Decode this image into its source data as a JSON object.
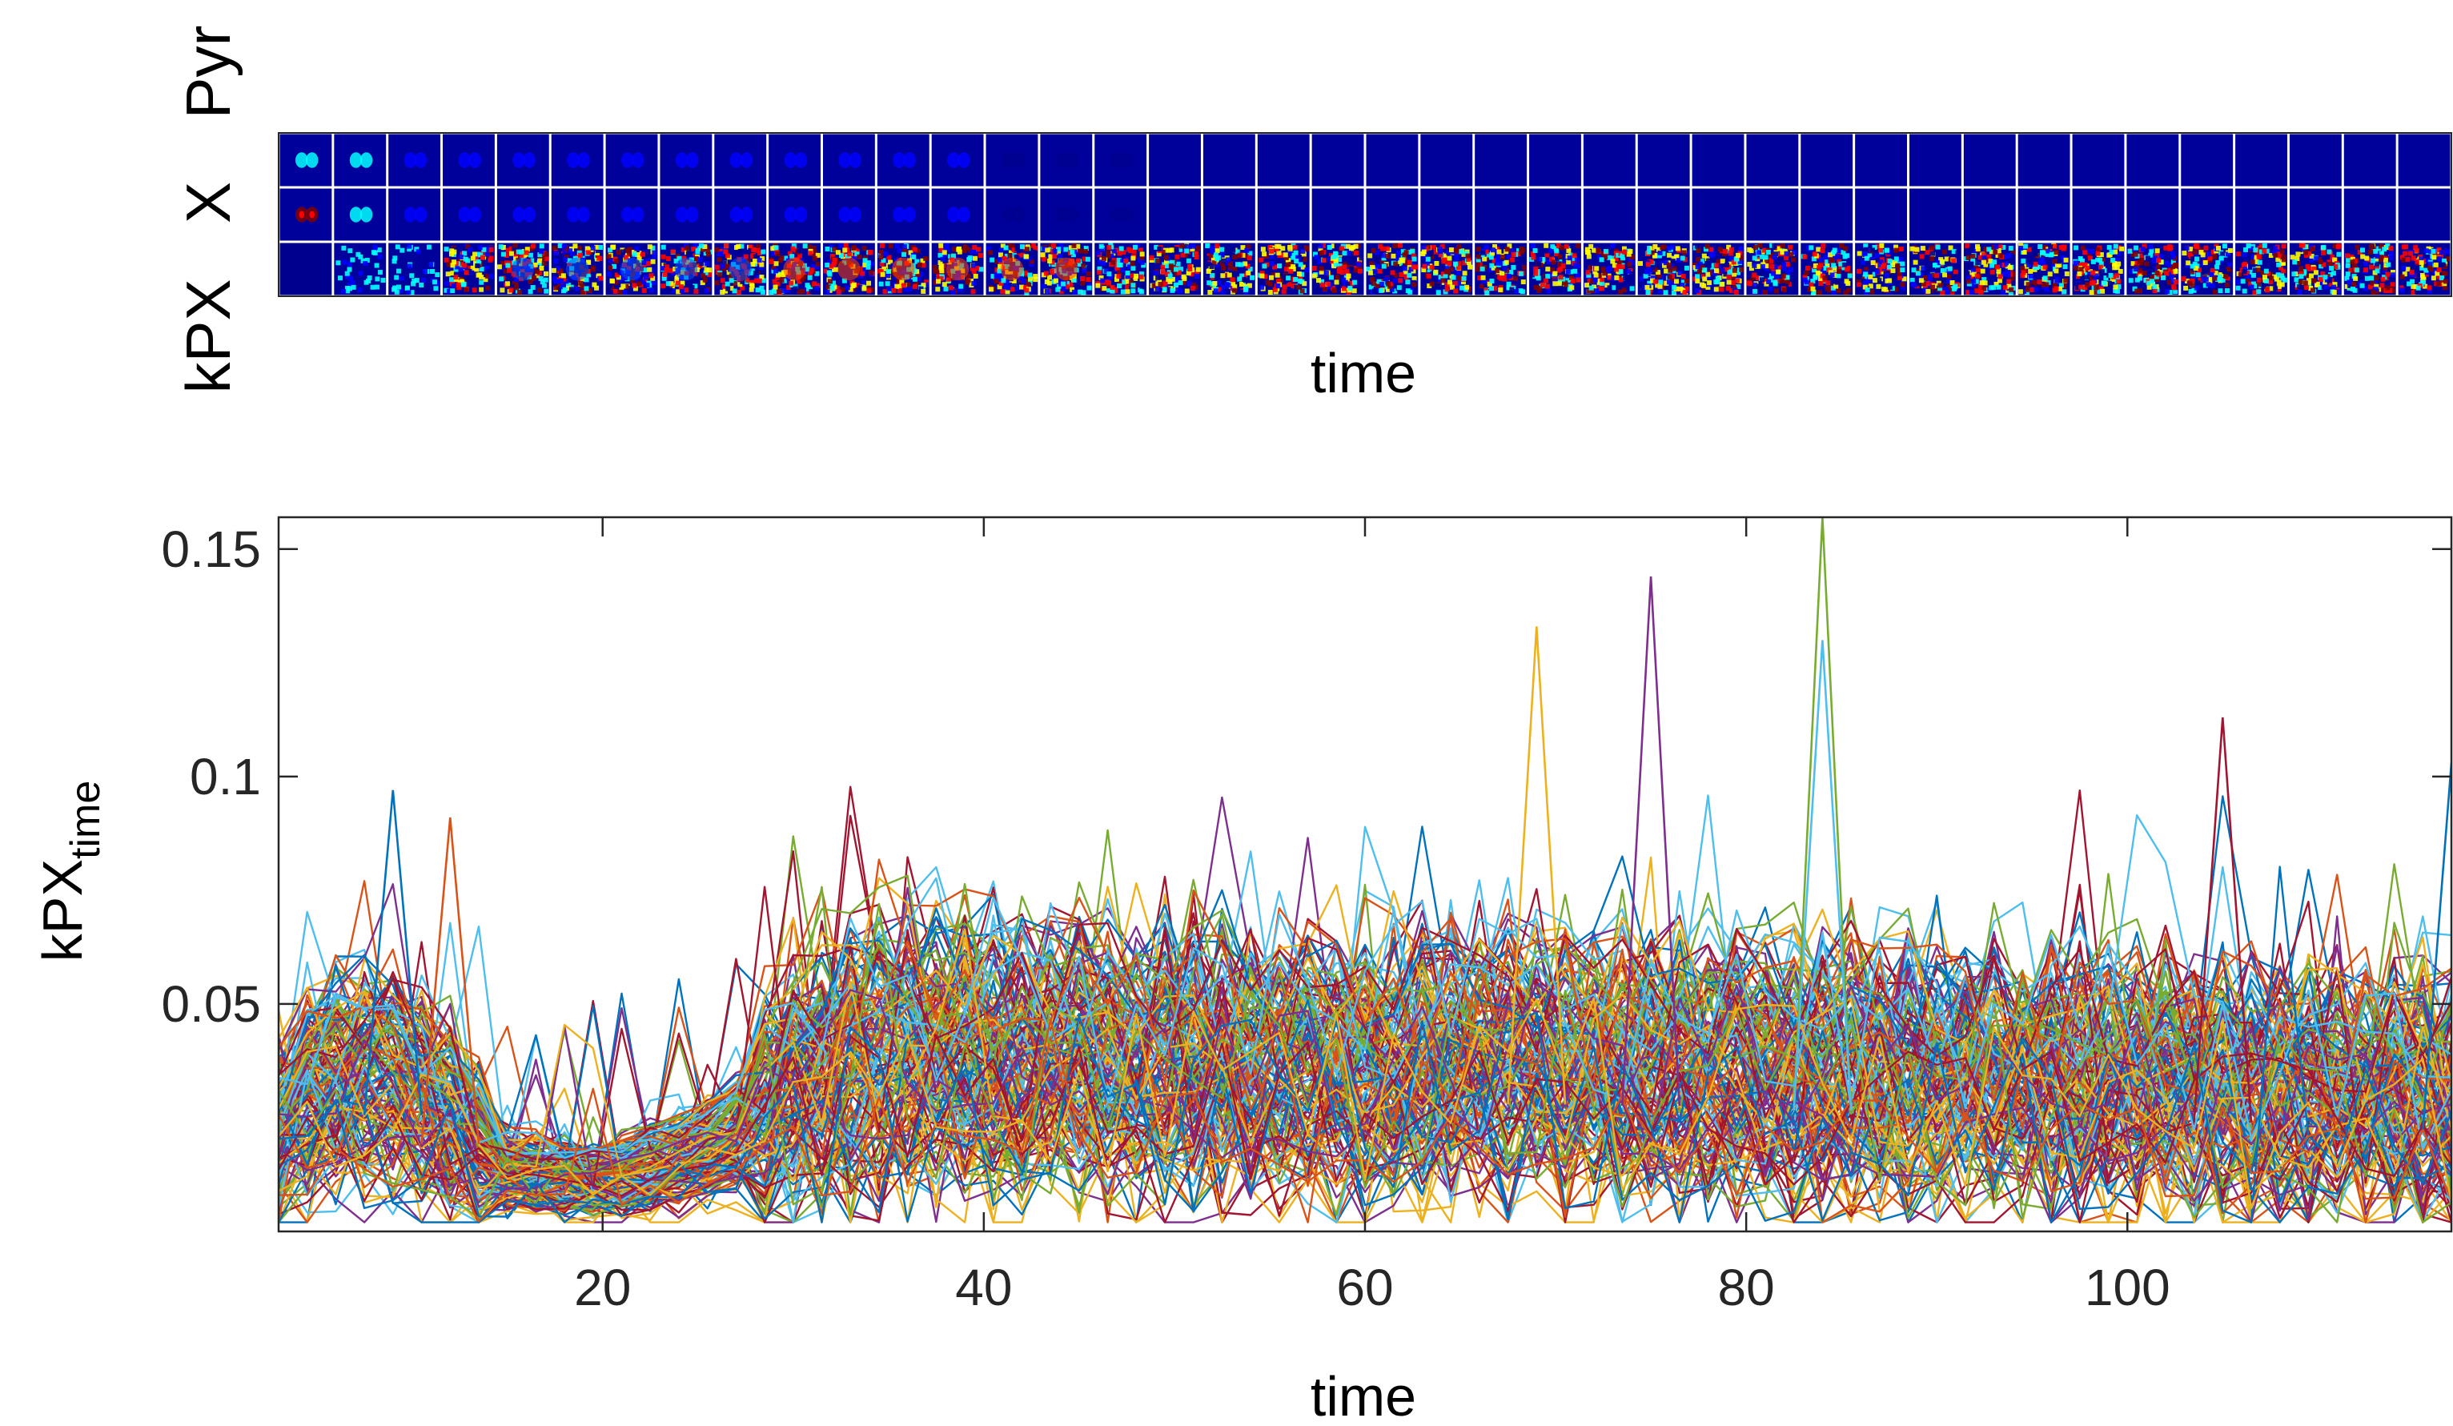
{
  "figure": {
    "montage": {
      "row_labels": [
        "Pyr",
        "X",
        "kPX"
      ],
      "xlabel": "time",
      "frame_count": 40,
      "colormap": [
        "#00008f",
        "#0000ff",
        "#00ffff",
        "#ffff00",
        "#ff0000",
        "#800000"
      ]
    }
  },
  "chart_data": {
    "type": "line",
    "title": "",
    "xlabel": "time",
    "ylabel": "kPX",
    "ylabel_subscript": "time",
    "xlim": [
      3,
      117
    ],
    "ylim": [
      0.0,
      0.157
    ],
    "xticks": [
      20,
      40,
      60,
      80,
      100
    ],
    "xtick_labels": [
      "20",
      "40",
      "60",
      "80",
      "100"
    ],
    "yticks": [
      0.05,
      0.1,
      0.15
    ],
    "ytick_labels": [
      "0.05",
      "0.1",
      "0.15"
    ],
    "series_count": 150,
    "series_colors": [
      "#0072BD",
      "#D95319",
      "#EDB120",
      "#7E2F8E",
      "#77AC30",
      "#4DBEEE",
      "#A2142F"
    ],
    "series_note": "Each series is one voxel's kPX over time (x = 3..117). Baseline profile below; individual series vary around it.",
    "profile": {
      "x": [
        3,
        5,
        7,
        9,
        11,
        13,
        15,
        20,
        25,
        28,
        32,
        35,
        40,
        45,
        50,
        55,
        60,
        70,
        80,
        90,
        100,
        110,
        117
      ],
      "y": [
        0.02,
        0.03,
        0.034,
        0.032,
        0.028,
        0.02,
        0.013,
        0.011,
        0.016,
        0.022,
        0.035,
        0.038,
        0.037,
        0.036,
        0.035,
        0.034,
        0.034,
        0.035,
        0.034,
        0.032,
        0.031,
        0.029,
        0.028
      ]
    },
    "notable_peaks": [
      {
        "x": 9,
        "y": 0.097
      },
      {
        "x": 12,
        "y": 0.091
      },
      {
        "x": 69,
        "y": 0.133
      },
      {
        "x": 75,
        "y": 0.144
      },
      {
        "x": 84,
        "y": 0.157
      },
      {
        "x": 84,
        "y": 0.13
      },
      {
        "x": 105,
        "y": 0.113
      },
      {
        "x": 117,
        "y": 0.103
      }
    ]
  }
}
